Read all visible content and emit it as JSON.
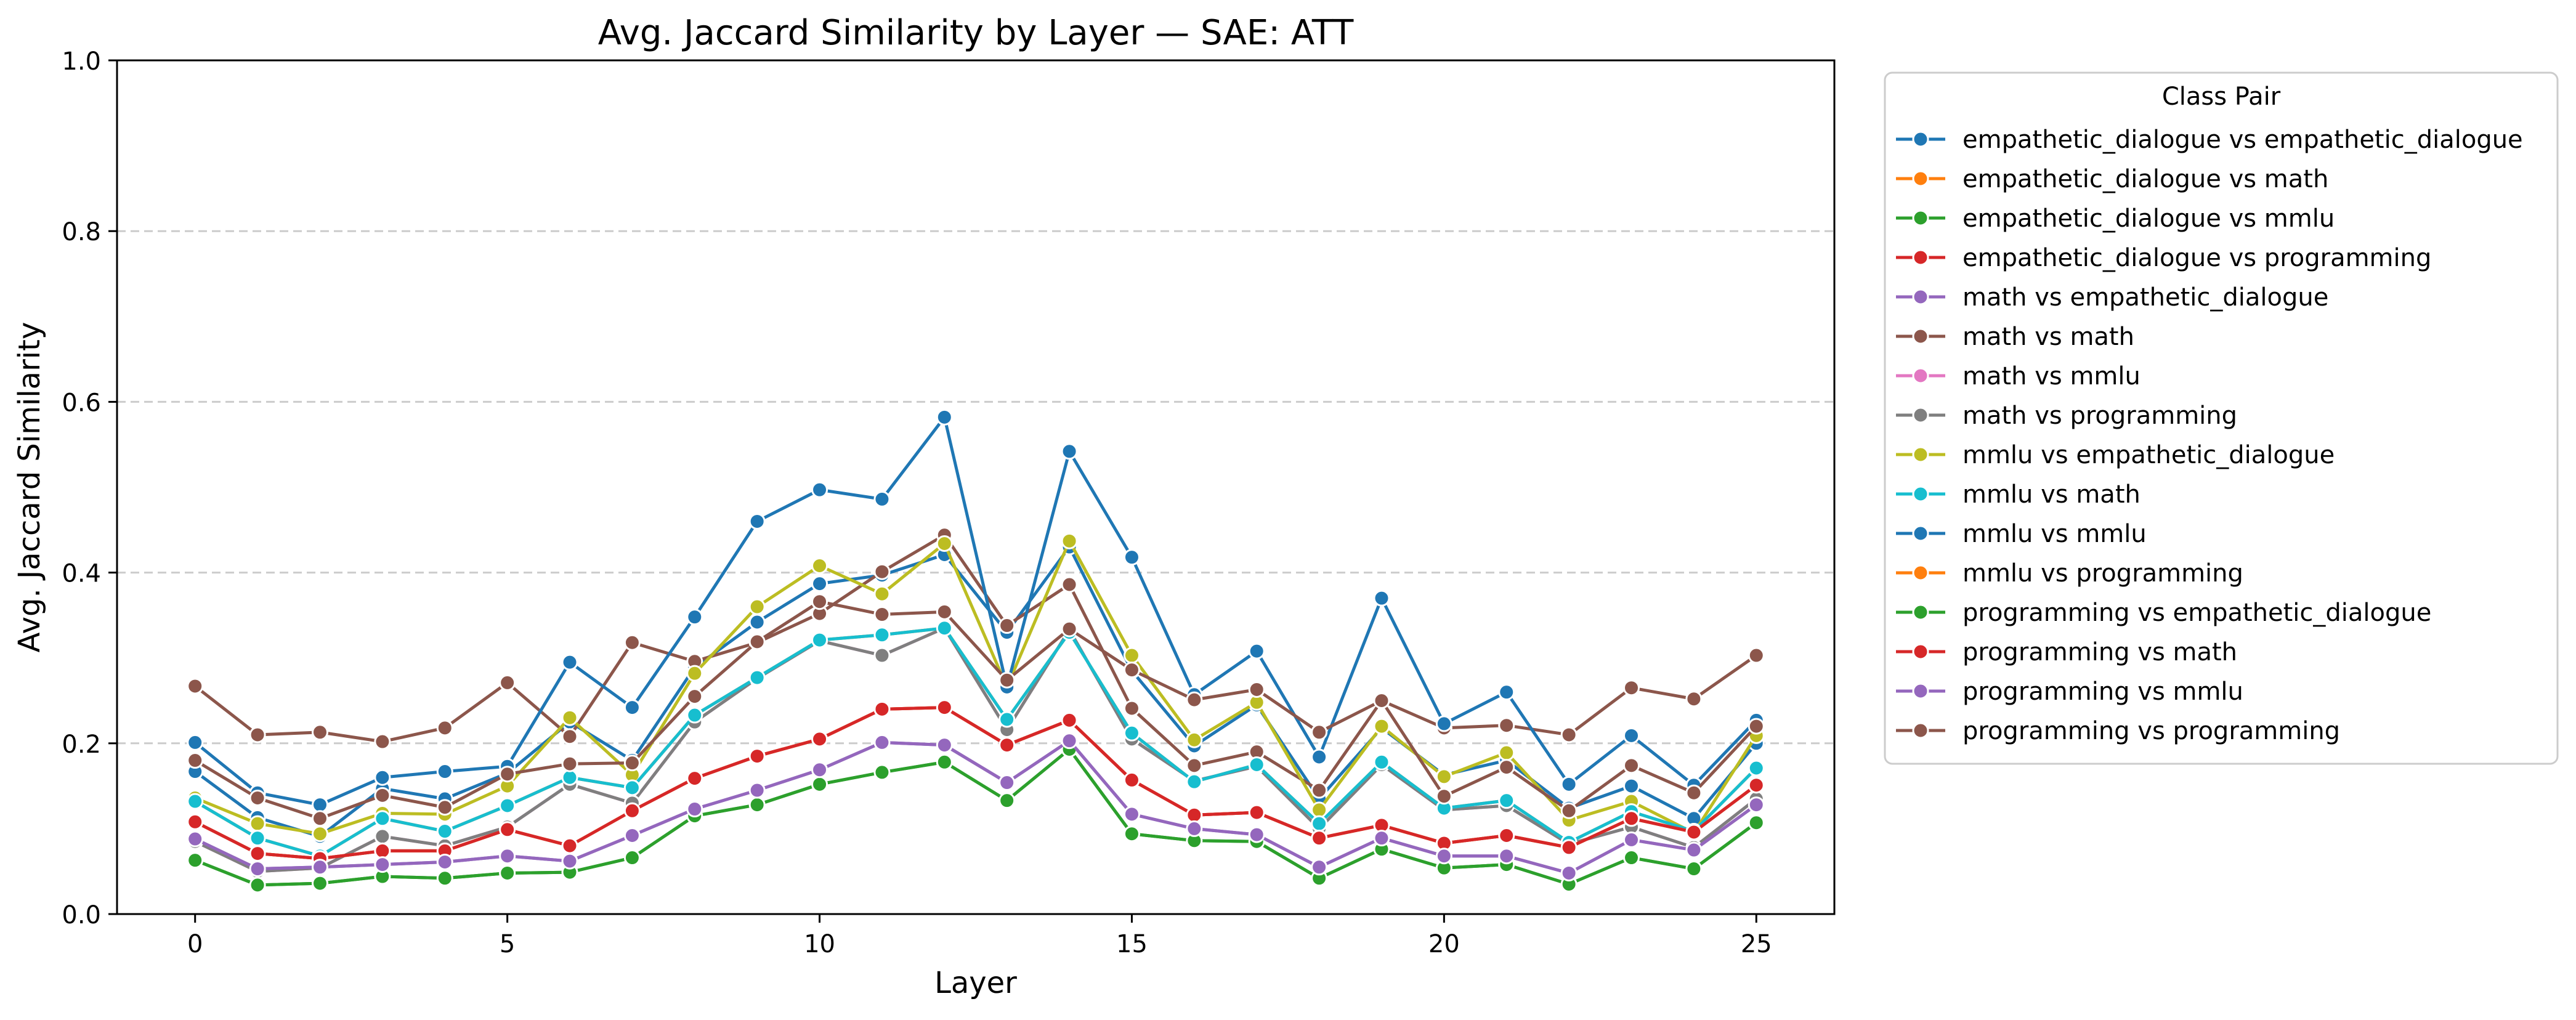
{
  "chart_data": {
    "type": "line",
    "title": "Avg. Jaccard Similarity by Layer — SAE: ATT",
    "xlabel": "Layer",
    "ylabel": "Avg. Jaccard Similarity",
    "xlim": [
      -1.25,
      26.25
    ],
    "ylim": [
      0.0,
      1.0
    ],
    "xticks": [
      0,
      5,
      10,
      15,
      20,
      25
    ],
    "yticks": [
      0.0,
      0.2,
      0.4,
      0.6,
      0.8,
      1.0
    ],
    "xtick_labels": [
      "0",
      "5",
      "10",
      "15",
      "20",
      "25"
    ],
    "ytick_labels": [
      "0.0",
      "0.2",
      "0.4",
      "0.6",
      "0.8",
      "1.0"
    ],
    "grid": "y-dashed",
    "legend": {
      "title": "Class Pair",
      "placement": "outside-right"
    },
    "x": [
      0,
      1,
      2,
      3,
      4,
      5,
      6,
      7,
      8,
      9,
      10,
      11,
      12,
      13,
      14,
      15,
      16,
      17,
      18,
      19,
      20,
      21,
      22,
      23,
      24,
      25
    ],
    "series": [
      {
        "name": "empathetic_dialogue vs empathetic_dialogue",
        "color": "#1f77b4",
        "values": [
          0.167,
          0.113,
          0.091,
          0.147,
          0.135,
          0.165,
          0.225,
          0.18,
          0.289,
          0.342,
          0.387,
          0.397,
          0.421,
          0.33,
          0.43,
          0.285,
          0.197,
          0.245,
          0.135,
          0.218,
          0.163,
          0.18,
          0.124,
          0.15,
          0.112,
          0.2
        ]
      },
      {
        "name": "empathetic_dialogue vs math",
        "color": "#ff7f0e",
        "values": [
          0.132,
          0.089,
          0.068,
          0.112,
          0.097,
          0.127,
          0.16,
          0.148,
          0.233,
          0.277,
          0.321,
          0.327,
          0.335,
          0.228,
          0.33,
          0.212,
          0.155,
          0.175,
          0.106,
          0.178,
          0.124,
          0.133,
          0.084,
          0.12,
          0.097,
          0.171
        ]
      },
      {
        "name": "empathetic_dialogue vs mmlu",
        "color": "#2ca02c",
        "values": [
          0.063,
          0.034,
          0.036,
          0.044,
          0.042,
          0.048,
          0.049,
          0.066,
          0.115,
          0.128,
          0.152,
          0.166,
          0.178,
          0.133,
          0.193,
          0.094,
          0.086,
          0.085,
          0.042,
          0.076,
          0.054,
          0.058,
          0.035,
          0.066,
          0.053,
          0.107
        ]
      },
      {
        "name": "empathetic_dialogue vs programming",
        "color": "#d62728",
        "values": [
          0.108,
          0.071,
          0.065,
          0.074,
          0.074,
          0.099,
          0.08,
          0.121,
          0.159,
          0.185,
          0.205,
          0.24,
          0.242,
          0.198,
          0.227,
          0.157,
          0.116,
          0.119,
          0.089,
          0.104,
          0.083,
          0.092,
          0.078,
          0.112,
          0.096,
          0.151
        ]
      },
      {
        "name": "math vs empathetic_dialogue",
        "color": "#9467bd",
        "values": [
          0.088,
          0.053,
          0.055,
          0.058,
          0.061,
          0.068,
          0.062,
          0.092,
          0.123,
          0.145,
          0.169,
          0.201,
          0.198,
          0.154,
          0.203,
          0.117,
          0.1,
          0.093,
          0.055,
          0.089,
          0.068,
          0.068,
          0.048,
          0.087,
          0.075,
          0.128
        ]
      },
      {
        "name": "math vs math",
        "color": "#8c564b",
        "values": [
          0.267,
          0.21,
          0.213,
          0.202,
          0.218,
          0.271,
          0.208,
          0.318,
          0.296,
          0.318,
          0.352,
          0.401,
          0.444,
          0.338,
          0.386,
          0.241,
          0.174,
          0.19,
          0.145,
          0.25,
          0.218,
          0.221,
          0.21,
          0.265,
          0.252,
          0.303
        ]
      },
      {
        "name": "math vs mmlu",
        "color": "#e377c2",
        "values": [
          0.085,
          0.05,
          0.054,
          0.091,
          0.08,
          0.102,
          0.152,
          0.13,
          0.225,
          0.276,
          0.32,
          0.303,
          0.335,
          0.216,
          0.333,
          0.205,
          0.156,
          0.173,
          0.1,
          0.175,
          0.122,
          0.127,
          0.082,
          0.102,
          0.078,
          0.135
        ]
      },
      {
        "name": "math vs programming",
        "color": "#7f7f7f",
        "values": [
          0.085,
          0.05,
          0.054,
          0.091,
          0.08,
          0.102,
          0.152,
          0.13,
          0.225,
          0.276,
          0.32,
          0.303,
          0.335,
          0.216,
          0.333,
          0.205,
          0.156,
          0.173,
          0.1,
          0.175,
          0.122,
          0.127,
          0.082,
          0.102,
          0.078,
          0.135
        ]
      },
      {
        "name": "mmlu vs empathetic_dialogue",
        "color": "#bcbd22",
        "values": [
          0.136,
          0.106,
          0.094,
          0.118,
          0.117,
          0.15,
          0.23,
          0.163,
          0.282,
          0.36,
          0.408,
          0.375,
          0.434,
          0.266,
          0.437,
          0.303,
          0.204,
          0.248,
          0.122,
          0.22,
          0.161,
          0.189,
          0.11,
          0.132,
          0.095,
          0.209
        ]
      },
      {
        "name": "mmlu vs math",
        "color": "#17becf",
        "values": [
          0.132,
          0.089,
          0.068,
          0.112,
          0.097,
          0.127,
          0.16,
          0.148,
          0.233,
          0.277,
          0.321,
          0.327,
          0.335,
          0.228,
          0.33,
          0.212,
          0.155,
          0.175,
          0.106,
          0.178,
          0.124,
          0.133,
          0.084,
          0.12,
          0.097,
          0.171
        ]
      },
      {
        "name": "mmlu vs mmlu",
        "color": "#1f77b4",
        "values": [
          0.201,
          0.142,
          0.128,
          0.16,
          0.167,
          0.173,
          0.295,
          0.242,
          0.348,
          0.46,
          0.497,
          0.486,
          0.582,
          0.266,
          0.542,
          0.418,
          0.257,
          0.308,
          0.184,
          0.37,
          0.223,
          0.26,
          0.152,
          0.209,
          0.151,
          0.227
        ]
      },
      {
        "name": "mmlu vs programming",
        "color": "#ff7f0e",
        "values": [
          0.108,
          0.071,
          0.065,
          0.074,
          0.074,
          0.099,
          0.08,
          0.121,
          0.159,
          0.185,
          0.205,
          0.24,
          0.242,
          0.198,
          0.227,
          0.157,
          0.116,
          0.119,
          0.089,
          0.104,
          0.083,
          0.092,
          0.078,
          0.112,
          0.096,
          0.151
        ]
      },
      {
        "name": "programming vs empathetic_dialogue",
        "color": "#2ca02c",
        "values": [
          0.063,
          0.034,
          0.036,
          0.044,
          0.042,
          0.048,
          0.049,
          0.066,
          0.115,
          0.128,
          0.152,
          0.166,
          0.178,
          0.133,
          0.193,
          0.094,
          0.086,
          0.085,
          0.042,
          0.076,
          0.054,
          0.058,
          0.035,
          0.066,
          0.053,
          0.107
        ]
      },
      {
        "name": "programming vs math",
        "color": "#d62728",
        "values": [
          0.108,
          0.071,
          0.065,
          0.074,
          0.074,
          0.099,
          0.08,
          0.121,
          0.159,
          0.185,
          0.205,
          0.24,
          0.242,
          0.198,
          0.227,
          0.157,
          0.116,
          0.119,
          0.089,
          0.104,
          0.083,
          0.092,
          0.078,
          0.112,
          0.096,
          0.151
        ]
      },
      {
        "name": "programming vs mmlu",
        "color": "#9467bd",
        "values": [
          0.088,
          0.053,
          0.055,
          0.058,
          0.061,
          0.068,
          0.062,
          0.092,
          0.123,
          0.145,
          0.169,
          0.201,
          0.198,
          0.154,
          0.203,
          0.117,
          0.1,
          0.093,
          0.055,
          0.089,
          0.068,
          0.068,
          0.048,
          0.087,
          0.075,
          0.128
        ]
      },
      {
        "name": "programming vs programming",
        "color": "#8c564b",
        "values": [
          0.18,
          0.136,
          0.112,
          0.139,
          0.125,
          0.164,
          0.176,
          0.177,
          0.255,
          0.319,
          0.366,
          0.351,
          0.354,
          0.274,
          0.334,
          0.286,
          0.251,
          0.263,
          0.213,
          0.25,
          0.138,
          0.172,
          0.121,
          0.174,
          0.142,
          0.22
        ]
      }
    ]
  }
}
